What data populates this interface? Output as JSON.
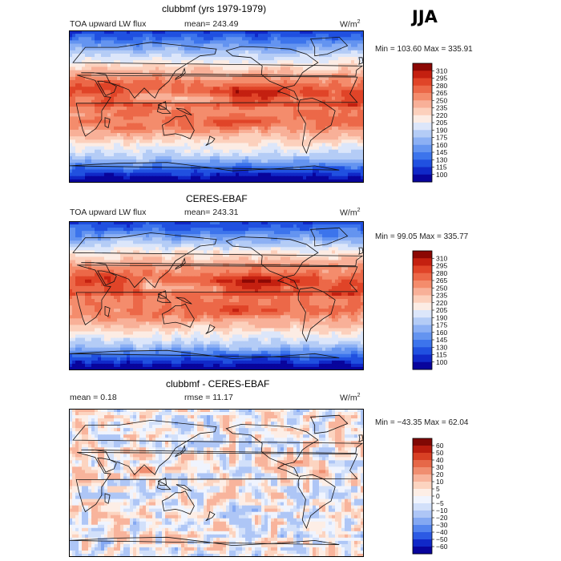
{
  "season": "JJA",
  "colors": {
    "abs": [
      "#08049c",
      "#1028c8",
      "#2050e0",
      "#3c74ec",
      "#6494f0",
      "#8cb0f4",
      "#b4ccf6",
      "#dce6fa",
      "#fcece4",
      "#fcd0bc",
      "#f8b098",
      "#f48c6c",
      "#ec6848",
      "#e04428",
      "#c42010",
      "#8c0804"
    ],
    "diff": [
      "#08049c",
      "#1028c8",
      "#2c5ae4",
      "#5484ee",
      "#84a8f2",
      "#aec6f6",
      "#d2e0fa",
      "#f0f4fe",
      "#fdeee6",
      "#fcd4c0",
      "#f8b49c",
      "#f08e70",
      "#e66848",
      "#d84024",
      "#b81c0e",
      "#800804"
    ]
  },
  "panels": [
    {
      "title": "clubbmf (yrs 1979-1979)",
      "var": "TOA upward LW flux",
      "stat": "mean=  243.49",
      "units": "W/m",
      "units_sup": "2",
      "minmax": "Min = 103.60 Max = 335.91",
      "colorbar": {
        "labels": [
          "310",
          "295",
          "280",
          "265",
          "250",
          "235",
          "220",
          "205",
          "190",
          "175",
          "160",
          "145",
          "130",
          "115",
          "100"
        ]
      }
    },
    {
      "title": "CERES-EBAF",
      "var": "TOA upward LW flux",
      "stat": "mean=  243.31",
      "units": "W/m",
      "units_sup": "2",
      "minmax": "Min =  99.05 Max = 335.77",
      "colorbar": {
        "labels": [
          "310",
          "295",
          "280",
          "265",
          "250",
          "235",
          "220",
          "205",
          "190",
          "175",
          "160",
          "145",
          "130",
          "115",
          "100"
        ]
      }
    },
    {
      "title": "clubbmf - CERES-EBAF",
      "var": "mean =    0.18",
      "stat": "rmse =   11.17",
      "units": "W/m",
      "units_sup": "2",
      "minmax": "Min = −43.35 Max =  62.04",
      "colorbar": {
        "labels": [
          "60",
          "50",
          "40",
          "30",
          "20",
          "10",
          "5",
          "0",
          "−5",
          "−10",
          "−20",
          "−30",
          "−40",
          "−50",
          "−60"
        ]
      }
    }
  ],
  "chart_data": [
    {
      "type": "heatmap",
      "title": "clubbmf (yrs 1979-1979)",
      "variable": "TOA upward LW flux",
      "units": "W/m2",
      "season": "JJA",
      "mean": 243.49,
      "min": 103.6,
      "max": 335.91,
      "colorbar_levels": [
        100,
        115,
        130,
        145,
        160,
        175,
        190,
        205,
        220,
        235,
        250,
        265,
        280,
        295,
        310
      ]
    },
    {
      "type": "heatmap",
      "title": "CERES-EBAF",
      "variable": "TOA upward LW flux",
      "units": "W/m2",
      "season": "JJA",
      "mean": 243.31,
      "min": 99.05,
      "max": 335.77,
      "colorbar_levels": [
        100,
        115,
        130,
        145,
        160,
        175,
        190,
        205,
        220,
        235,
        250,
        265,
        280,
        295,
        310
      ]
    },
    {
      "type": "heatmap",
      "title": "clubbmf - CERES-EBAF",
      "units": "W/m2",
      "season": "JJA",
      "mean": 0.18,
      "rmse": 11.17,
      "min": -43.35,
      "max": 62.04,
      "colorbar_levels": [
        -60,
        -50,
        -40,
        -30,
        -20,
        -10,
        -5,
        0,
        5,
        10,
        20,
        30,
        40,
        50,
        60
      ]
    }
  ]
}
